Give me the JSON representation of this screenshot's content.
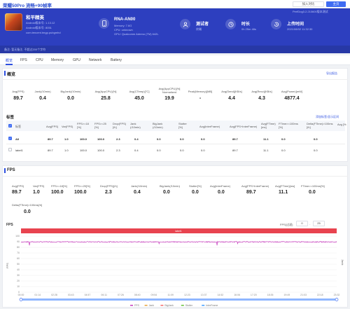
{
  "window": {
    "title": "荣耀50Pro 流畅+90帧率"
  },
  "toolbar": {
    "add_label": "加入对比",
    "main_label": "主页"
  },
  "header": {
    "game_name": "和平精英",
    "game_version": "Android版本号: 1.13.12",
    "game_build": "Android版本号: 8051",
    "package": "com.tencent.tmgp.pubgmhd",
    "device_model": "RNA-AN00",
    "device_memory": "Memory: 7.6G",
    "device_cpu": "CPU: unknown",
    "device_gpu": "GPU: Qualcomm Adreno (TM) 642L",
    "tester_label": "测试者",
    "tester_value": "终端",
    "duration_label": "时长",
    "duration_value": "0h 25m 48s",
    "upload_label": "上传时间",
    "upload_value": "2021/08/02 11:32:30",
    "perfdog_note": "PerfDog3.2.210600版本测试",
    "sub_text": "备注: 暂无备注, 不超过200个字符"
  },
  "tabs": [
    "概览",
    "FPS",
    "CPU",
    "Memory",
    "GPU",
    "Network",
    "Battery"
  ],
  "overview": {
    "title": "概览",
    "export": "导出报告",
    "metrics": [
      {
        "label": "Avg(FPS)",
        "value": "89.7"
      },
      {
        "label": "Jank(/10min)",
        "value": "0.4"
      },
      {
        "label": "BigJank(/10min)",
        "value": "0.0"
      },
      {
        "label": "Avg(AppCPU)[%]",
        "value": "25.8"
      },
      {
        "label": "Avg(CTemp)[°C]",
        "value": "45.0"
      },
      {
        "label": "Avg(AppCPU)[%] Normalized",
        "value": "19.9"
      },
      {
        "label": "Peak(Memory)[MB]",
        "value": "-"
      },
      {
        "label": "Avg(Send)[KB/s]",
        "value": "4.4"
      },
      {
        "label": "Avg(Recv)[KB/s]",
        "value": "4.3"
      },
      {
        "label": "Avg(Power)[mW]",
        "value": "4877.4"
      }
    ]
  },
  "labels_table": {
    "title": "标签",
    "link": "添加标签/显示区间",
    "headers": [
      "标签",
      "Avg(FPS)",
      "Var(FPS)",
      "FPS>=18 [%]",
      "FPS>=25 [%]",
      "Drop(FPS) [/h]",
      "Jank (/10min)",
      "BigJank (/10min)",
      "Stutter [%]",
      "Avg(InterFrame)",
      "Avg(FPS+InterFrame)",
      "Avg(FTime) [ms]",
      "FTime>=100ms [%]",
      "Delta(FTime)>100ms [/h]",
      "Avg [%"
    ],
    "rows": [
      {
        "checked": true,
        "name": "All",
        "cells": [
          "89.7",
          "1.0",
          "100.0",
          "100.0",
          "2.3",
          "0.4",
          "0.0",
          "0.0",
          "0.0",
          "89.7",
          "11.1",
          "0.0",
          "0.0"
        ]
      },
      {
        "checked": false,
        "name": "label1",
        "cells": [
          "89.7",
          "1.0",
          "100.0",
          "100.0",
          "2.3",
          "0.4",
          "0.0",
          "0.0",
          "0.0",
          "89.7",
          "11.1",
          "0.0",
          "0.0"
        ]
      }
    ]
  },
  "fps": {
    "title": "FPS",
    "stats": [
      {
        "label": "Avg(FPS)",
        "value": "89.7"
      },
      {
        "label": "Var(FPS)",
        "value": "1.0"
      },
      {
        "label": "FPS>=18[%]",
        "value": "100.0"
      },
      {
        "label": "FPS>=25[%]",
        "value": "100.0"
      },
      {
        "label": "Drop(FPS)[/h]",
        "value": "2.3"
      },
      {
        "label": "Jank(/10min)",
        "value": "0.4"
      },
      {
        "label": "BigJank(/10min)",
        "value": "0.0"
      },
      {
        "label": "Stutter[%]",
        "value": "0.0"
      },
      {
        "label": "Avg(InterFrame)",
        "value": "0.0"
      },
      {
        "label": "Avg(FPS+InterFrame)",
        "value": "89.7"
      },
      {
        "label": "Avg(FTime)[ms]",
        "value": "11.1"
      },
      {
        "label": "FTime>=100ms[%]",
        "value": "0.0"
      }
    ],
    "extra_label": "Delta(FTime)>100ms[/h]",
    "extra_value": "0.0",
    "filter_label": "FPS(过滤)",
    "filter_min": "0",
    "filter_max": "25"
  },
  "chart_data": {
    "type": "line",
    "title": "FPS",
    "band_label": "label1",
    "ylabel": "FPS",
    "ylabel_right": "Jank",
    "ylim": [
      0,
      100
    ],
    "y_ticks": [
      "100",
      "90",
      "80",
      "70",
      "60",
      "50",
      "40",
      "30",
      "20",
      "10",
      "0"
    ],
    "x_ticks": [
      "00:00",
      "01:14",
      "02:28",
      "03:43",
      "04:57",
      "06:11",
      "07:26",
      "08:40",
      "09:54",
      "11:09",
      "12:23",
      "13:37",
      "14:52",
      "16:06",
      "17:20",
      "18:35",
      "19:49",
      "21:03",
      "22:18",
      "23:32"
    ],
    "series": [
      {
        "name": "FPS",
        "color": "#c63bbd",
        "mean": 89.7
      }
    ],
    "legend": [
      "FPS",
      "Jank",
      "BigJank",
      "Stutter",
      "InterFrame"
    ],
    "legend_colors": [
      "#c63bbd",
      "#e6a23c",
      "#f56c6c",
      "#67c23a",
      "#409eff"
    ]
  }
}
